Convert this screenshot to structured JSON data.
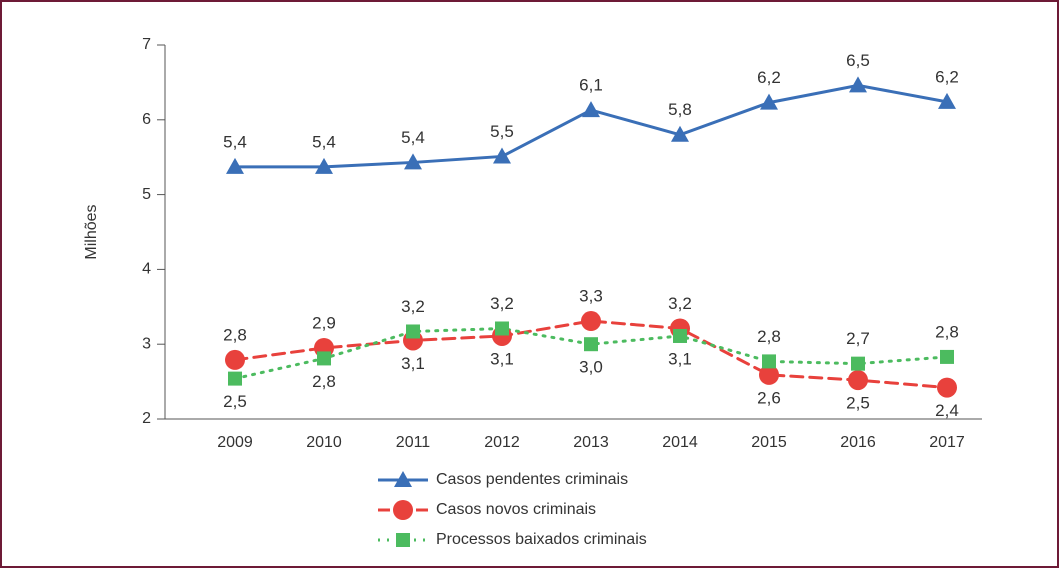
{
  "chart_data": {
    "type": "line",
    "ylabel": "Milhões",
    "categories": [
      "2009",
      "2010",
      "2011",
      "2012",
      "2013",
      "2014",
      "2015",
      "2016",
      "2017"
    ],
    "series": [
      {
        "name": "Casos pendentes criminais",
        "color": "#3a6fb7",
        "style": "solid",
        "marker": "triangle",
        "values": [
          5.37,
          5.37,
          5.43,
          5.51,
          6.13,
          5.8,
          6.23,
          6.46,
          6.24
        ],
        "value_labels": [
          "5,4",
          "5,4",
          "5,4",
          "5,5",
          "6,1",
          "5,8",
          "6,2",
          "6,5",
          "6,2"
        ]
      },
      {
        "name": "Casos novos criminais",
        "color": "#e8413c",
        "style": "dashed",
        "marker": "circle",
        "values": [
          2.79,
          2.95,
          3.05,
          3.11,
          3.31,
          3.21,
          2.59,
          2.52,
          2.42
        ],
        "value_labels": [
          "2,8",
          "2,9",
          "3,1",
          "3,1",
          "3,3",
          "3,2",
          "2,6",
          "2,5",
          "2,4"
        ]
      },
      {
        "name": "Processos baixados criminais",
        "color": "#4cbb5f",
        "style": "dotted",
        "marker": "square",
        "values": [
          2.54,
          2.81,
          3.17,
          3.21,
          3.0,
          3.11,
          2.77,
          2.74,
          2.83
        ],
        "value_labels": [
          "2,5",
          "2,8",
          "3,2",
          "3,2",
          "3,0",
          "3,1",
          "2,8",
          "2,7",
          "2,8"
        ]
      }
    ],
    "ylim": [
      2,
      7
    ],
    "yticks": [
      2,
      3,
      4,
      5,
      6,
      7
    ],
    "grid": false,
    "legend": "bottom"
  }
}
